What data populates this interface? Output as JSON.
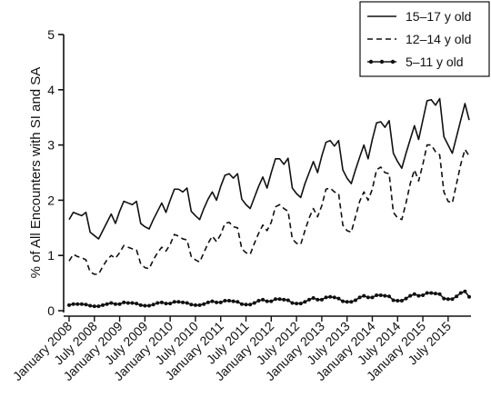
{
  "chart_data": {
    "type": "line",
    "title": "",
    "xlabel": "",
    "ylabel": "% of All Encounters with SI and SA",
    "ylim": [
      0,
      5
    ],
    "yticks": [
      "0",
      "1",
      "2",
      "3",
      "4",
      "5"
    ],
    "grid": false,
    "legend_position": "top-right",
    "x_ticks": [
      {
        "label": "January 2008",
        "month_index": 0
      },
      {
        "label": "July 2008",
        "month_index": 6
      },
      {
        "label": "January 2009",
        "month_index": 12
      },
      {
        "label": "July 2009",
        "month_index": 18
      },
      {
        "label": "January 2010",
        "month_index": 24
      },
      {
        "label": "July 2010",
        "month_index": 30
      },
      {
        "label": "January 2011",
        "month_index": 36
      },
      {
        "label": "July 2011",
        "month_index": 42
      },
      {
        "label": "January 2012",
        "month_index": 48
      },
      {
        "label": "July 2012",
        "month_index": 54
      },
      {
        "label": "January 2013",
        "month_index": 60
      },
      {
        "label": "July 2013",
        "month_index": 66
      },
      {
        "label": "January 2014",
        "month_index": 72
      },
      {
        "label": "July 2014",
        "month_index": 78
      },
      {
        "label": "January 2015",
        "month_index": 84
      },
      {
        "label": "July 2015",
        "month_index": 90
      }
    ],
    "series": [
      {
        "name": "15–17 y old",
        "style": "solid",
        "values": [
          1.65,
          1.78,
          1.75,
          1.72,
          1.78,
          1.42,
          1.36,
          1.3,
          1.45,
          1.6,
          1.75,
          1.58,
          1.8,
          1.98,
          1.95,
          1.92,
          1.98,
          1.58,
          1.52,
          1.48,
          1.65,
          1.8,
          1.95,
          1.78,
          2.0,
          2.2,
          2.2,
          2.15,
          2.22,
          1.8,
          1.72,
          1.65,
          1.85,
          2.02,
          2.15,
          2.0,
          2.25,
          2.45,
          2.48,
          2.4,
          2.48,
          2.02,
          1.92,
          1.85,
          2.05,
          2.25,
          2.42,
          2.22,
          2.5,
          2.75,
          2.75,
          2.65,
          2.76,
          2.22,
          2.12,
          2.05,
          2.3,
          2.5,
          2.7,
          2.5,
          2.8,
          3.05,
          3.08,
          2.98,
          3.08,
          2.55,
          2.4,
          2.3,
          2.55,
          2.78,
          3.0,
          2.75,
          3.1,
          3.4,
          3.42,
          3.32,
          3.44,
          2.85,
          2.7,
          2.58,
          2.85,
          3.1,
          3.35,
          3.1,
          3.45,
          3.8,
          3.82,
          3.72,
          3.84,
          3.15,
          3.0,
          2.85,
          3.15,
          3.45,
          3.75,
          3.45
        ]
      },
      {
        "name": "12–14 y old",
        "style": "dashed",
        "values": [
          0.9,
          1.02,
          0.98,
          0.96,
          0.92,
          0.7,
          0.66,
          0.66,
          0.8,
          0.92,
          1.0,
          0.95,
          1.05,
          1.18,
          1.15,
          1.12,
          1.1,
          0.85,
          0.78,
          0.76,
          0.92,
          1.05,
          1.15,
          1.08,
          1.2,
          1.38,
          1.35,
          1.3,
          1.28,
          0.98,
          0.92,
          0.88,
          1.05,
          1.22,
          1.35,
          1.25,
          1.38,
          1.58,
          1.6,
          1.52,
          1.5,
          1.12,
          1.05,
          1.02,
          1.22,
          1.4,
          1.55,
          1.45,
          1.6,
          1.88,
          1.92,
          1.85,
          1.8,
          1.3,
          1.22,
          1.2,
          1.45,
          1.68,
          1.85,
          1.7,
          1.9,
          2.2,
          2.22,
          2.15,
          2.12,
          1.55,
          1.45,
          1.42,
          1.7,
          1.98,
          2.15,
          2.0,
          2.2,
          2.55,
          2.6,
          2.5,
          2.48,
          1.78,
          1.68,
          1.65,
          1.95,
          2.3,
          2.55,
          2.35,
          2.65,
          3.0,
          3.0,
          2.88,
          2.82,
          2.15,
          1.98,
          1.95,
          2.3,
          2.65,
          2.92,
          2.8
        ]
      },
      {
        "name": "5–11 y old",
        "style": "dotted-markers",
        "values": [
          0.1,
          0.12,
          0.12,
          0.12,
          0.11,
          0.09,
          0.08,
          0.08,
          0.1,
          0.12,
          0.14,
          0.12,
          0.12,
          0.15,
          0.14,
          0.14,
          0.13,
          0.1,
          0.09,
          0.09,
          0.11,
          0.14,
          0.15,
          0.13,
          0.13,
          0.16,
          0.16,
          0.15,
          0.14,
          0.11,
          0.1,
          0.1,
          0.12,
          0.15,
          0.17,
          0.15,
          0.15,
          0.18,
          0.18,
          0.17,
          0.16,
          0.12,
          0.11,
          0.11,
          0.14,
          0.18,
          0.2,
          0.17,
          0.17,
          0.21,
          0.21,
          0.2,
          0.19,
          0.14,
          0.13,
          0.13,
          0.16,
          0.2,
          0.23,
          0.2,
          0.2,
          0.24,
          0.25,
          0.24,
          0.22,
          0.17,
          0.16,
          0.16,
          0.19,
          0.24,
          0.27,
          0.24,
          0.24,
          0.28,
          0.28,
          0.27,
          0.26,
          0.19,
          0.18,
          0.18,
          0.22,
          0.27,
          0.3,
          0.27,
          0.28,
          0.32,
          0.32,
          0.31,
          0.3,
          0.22,
          0.21,
          0.21,
          0.26,
          0.32,
          0.35,
          0.25
        ]
      }
    ]
  }
}
